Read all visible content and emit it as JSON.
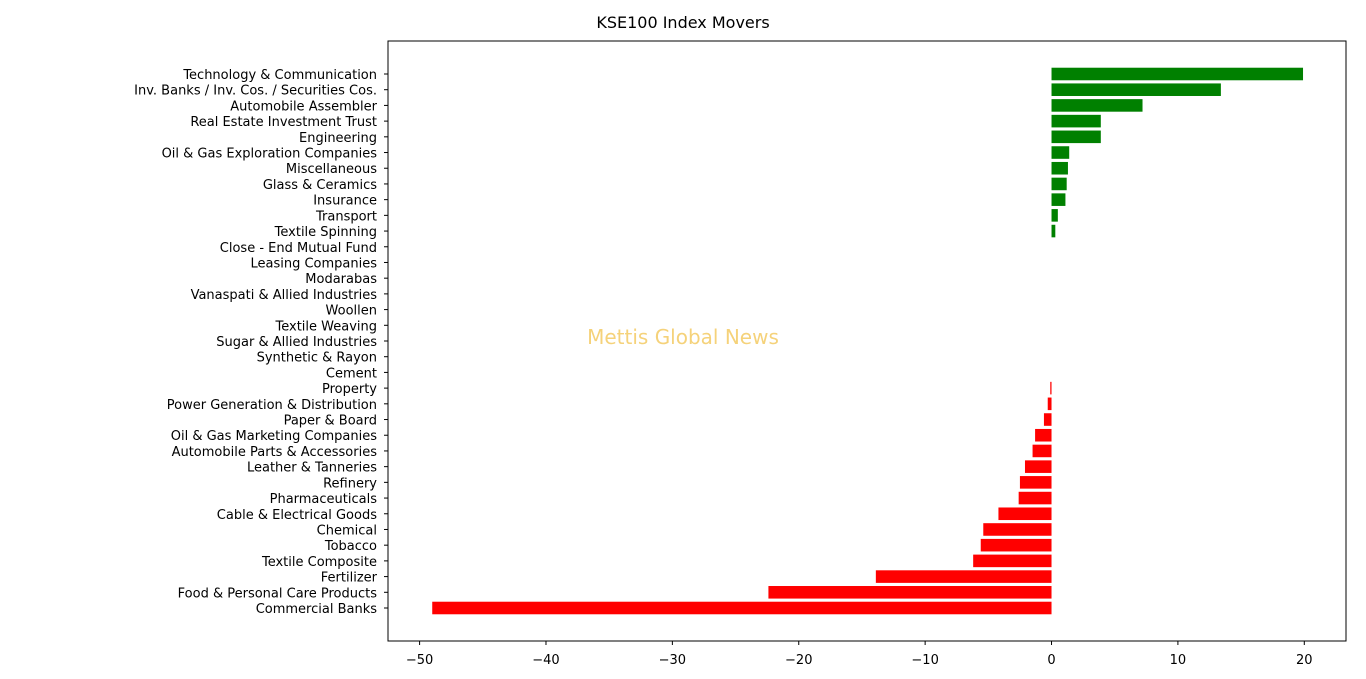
{
  "chart_data": {
    "type": "bar",
    "orientation": "horizontal",
    "title": "KSE100 Index Movers",
    "watermark": "Mettis Global News",
    "xlabel": "",
    "ylabel": "",
    "xlim": [
      -52.5,
      23.3
    ],
    "xticks": [
      -50,
      -40,
      -30,
      -20,
      -10,
      0,
      10,
      20
    ],
    "xtick_labels": [
      "−50",
      "−40",
      "−30",
      "−20",
      "−10",
      "0",
      "10",
      "20"
    ],
    "grid": false,
    "colors": {
      "positive": "#008000",
      "negative": "#ff0000"
    },
    "categories": [
      "Technology & Communication",
      "Inv. Banks / Inv. Cos. / Securities Cos.",
      "Automobile Assembler",
      "Real Estate Investment Trust",
      "Engineering",
      "Oil & Gas Exploration Companies",
      "Miscellaneous",
      "Glass & Ceramics",
      "Insurance",
      "Transport",
      "Textile Spinning",
      "Close - End Mutual Fund",
      "Leasing Companies",
      "Modarabas",
      "Vanaspati & Allied Industries",
      "Woollen",
      "Textile Weaving",
      "Sugar & Allied Industries",
      "Synthetic & Rayon",
      "Cement",
      "Property",
      "Power Generation & Distribution",
      "Paper & Board",
      "Oil & Gas Marketing Companies",
      "Automobile Parts & Accessories",
      "Leather & Tanneries",
      "Refinery",
      "Pharmaceuticals",
      "Cable & Electrical Goods",
      "Chemical",
      "Tobacco",
      "Textile Composite",
      "Fertilizer",
      "Food & Personal Care Products",
      "Commercial Banks"
    ],
    "values": [
      19.9,
      13.4,
      7.2,
      3.9,
      3.9,
      1.4,
      1.3,
      1.2,
      1.1,
      0.5,
      0.3,
      0,
      0,
      0,
      0,
      0,
      0,
      0,
      0,
      0,
      -0.1,
      -0.3,
      -0.6,
      -1.3,
      -1.5,
      -2.1,
      -2.5,
      -2.6,
      -4.2,
      -5.4,
      -5.6,
      -6.2,
      -13.9,
      -22.4,
      -49.0
    ]
  }
}
